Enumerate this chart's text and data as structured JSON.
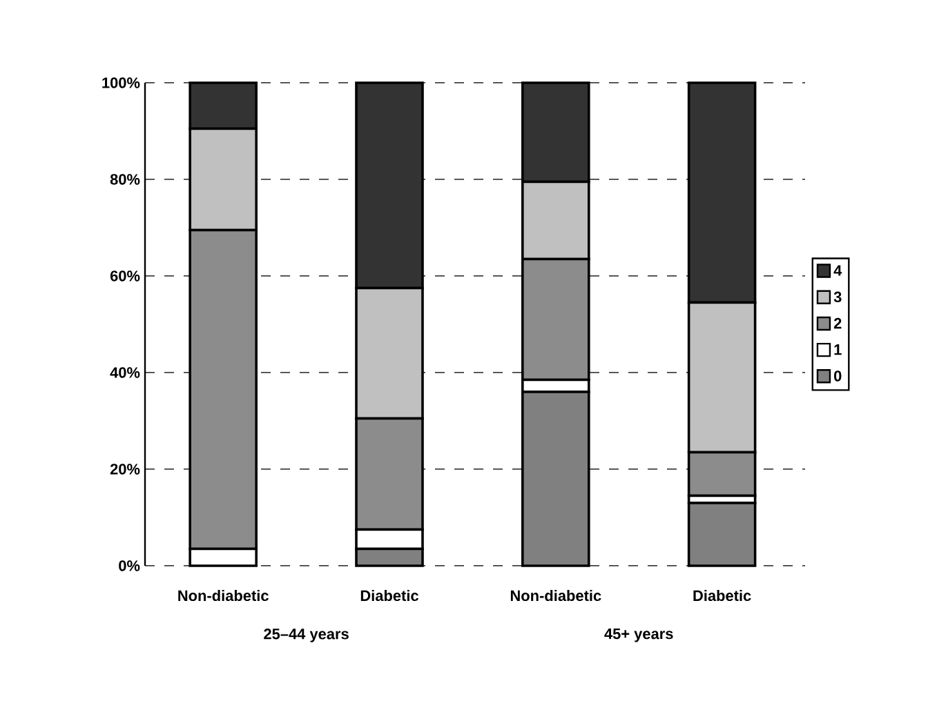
{
  "chart_data": {
    "type": "bar",
    "stacked": true,
    "categories": [
      "Non-diabetic",
      "Diabetic",
      "Non-diabetic",
      "Diabetic"
    ],
    "series": [
      {
        "name": "0",
        "color": "#808080",
        "values": [
          0,
          3.5,
          36,
          13
        ]
      },
      {
        "name": "1",
        "color": "#ffffff",
        "values": [
          3.5,
          4,
          2.5,
          1.5
        ]
      },
      {
        "name": "2",
        "color": "#8c8c8c",
        "values": [
          66,
          23,
          25,
          9
        ]
      },
      {
        "name": "3",
        "color": "#c0c0c0",
        "values": [
          21,
          27,
          16,
          31
        ]
      },
      {
        "name": "4",
        "color": "#333333",
        "values": [
          9.5,
          42.5,
          20.5,
          45.5
        ]
      }
    ],
    "ylim": [
      0,
      100
    ],
    "yticks": [
      {
        "value": 0,
        "label": "0%"
      },
      {
        "value": 20,
        "label": "20%"
      },
      {
        "value": 40,
        "label": "40%"
      },
      {
        "value": 60,
        "label": "60%"
      },
      {
        "value": 80,
        "label": "80%"
      },
      {
        "value": 100,
        "label": "100%"
      }
    ],
    "grid": "y",
    "legend": "right",
    "annotations": [
      "25–44 years",
      "45+ years"
    ]
  }
}
